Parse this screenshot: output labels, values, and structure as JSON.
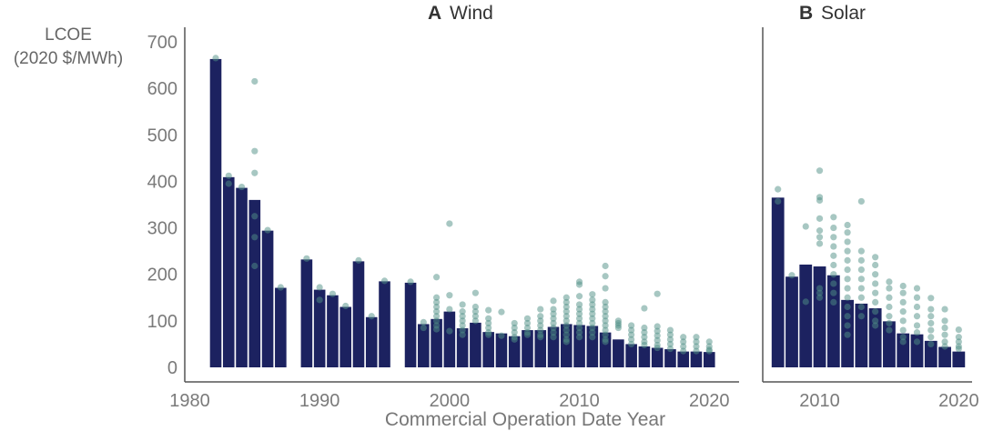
{
  "chart_data": [
    {
      "type": "bar",
      "panel_letter": "A",
      "title": "Wind",
      "xlabel": "Commercial Operation Date Year",
      "ylabel": [
        "LCOE",
        "(2020 $/MWh)"
      ],
      "ylim": [
        0,
        700
      ],
      "yticks": [
        "0",
        "100",
        "200",
        "300",
        "400",
        "500",
        "600",
        "700"
      ],
      "xlim": [
        1980,
        2021
      ],
      "xticks": [
        "1980",
        "1990",
        "2000",
        "2010",
        "2020"
      ],
      "grid": false,
      "years": [
        1982,
        1983,
        1984,
        1985,
        1986,
        1987,
        1989,
        1990,
        1991,
        1992,
        1993,
        1994,
        1995,
        1997,
        1998,
        1999,
        2000,
        2001,
        2002,
        2003,
        2004,
        2005,
        2006,
        2007,
        2008,
        2009,
        2010,
        2011,
        2012,
        2013,
        2014,
        2015,
        2016,
        2017,
        2018,
        2019,
        2020
      ],
      "values": [
        663,
        409,
        386,
        360,
        294,
        171,
        232,
        167,
        155,
        130,
        228,
        108,
        185,
        182,
        93,
        104,
        120,
        84,
        96,
        76,
        73,
        67,
        80,
        80,
        87,
        93,
        91,
        89,
        75,
        60,
        50,
        45,
        42,
        39,
        34,
        34,
        33
      ],
      "points": [
        [
          665
        ],
        [
          412,
          395
        ],
        [
          388
        ],
        [
          615,
          465,
          418,
          325,
          280,
          218
        ],
        [
          295
        ],
        [
          172
        ],
        [
          234
        ],
        [
          172,
          145
        ],
        [
          158
        ],
        [
          132
        ],
        [
          230
        ],
        [
          110
        ],
        [
          186
        ],
        [
          184
        ],
        [
          97,
          85
        ],
        [
          194,
          150,
          140,
          130,
          120,
          110,
          100,
          90,
          82
        ],
        [
          309,
          155,
          125,
          78
        ],
        [
          135,
          120,
          110,
          100,
          90,
          80,
          70
        ],
        [
          160,
          130,
          120,
          110,
          100
        ],
        [
          123,
          105,
          95,
          85,
          75,
          70
        ],
        [
          119,
          68
        ],
        [
          95,
          85,
          75,
          65,
          60
        ],
        [
          105,
          95,
          85,
          75,
          70
        ],
        [
          125,
          110,
          100,
          90,
          80,
          70,
          65
        ],
        [
          143,
          125,
          115,
          105,
          95,
          85,
          75,
          65
        ],
        [
          150,
          140,
          130,
          120,
          110,
          100,
          90,
          80,
          70,
          60,
          55
        ],
        [
          184,
          178,
          153,
          135,
          125,
          115,
          105,
          95,
          85,
          75,
          65
        ],
        [
          157,
          145,
          135,
          125,
          115,
          105,
          95,
          85,
          75,
          65
        ],
        [
          218,
          196,
          170,
          140,
          130,
          120,
          110,
          100,
          90,
          80,
          70,
          60,
          55
        ],
        [
          100,
          95,
          90,
          85
        ],
        [
          90,
          80,
          70,
          60,
          50
        ],
        [
          127,
          85,
          75,
          65,
          55,
          48
        ],
        [
          158,
          88,
          78,
          68,
          58,
          48,
          42
        ],
        [
          80,
          70,
          60,
          50,
          40
        ],
        [
          65,
          55,
          45,
          35
        ],
        [
          65,
          55,
          45,
          35
        ],
        [
          55,
          45,
          38,
          35
        ]
      ]
    },
    {
      "type": "bar",
      "panel_letter": "B",
      "title": "Solar",
      "ylim": [
        0,
        700
      ],
      "xlim": [
        2006,
        2021
      ],
      "xticks": [
        "2010",
        "2020"
      ],
      "grid": false,
      "years": [
        2007,
        2008,
        2009,
        2010,
        2011,
        2012,
        2013,
        2014,
        2015,
        2016,
        2017,
        2018,
        2019,
        2020
      ],
      "values": [
        365,
        195,
        221,
        217,
        198,
        145,
        137,
        127,
        99,
        73,
        71,
        57,
        44,
        34
      ],
      "points": [
        [
          383,
          357
        ],
        [
          198
        ],
        [
          303,
          141
        ],
        [
          423,
          366,
          359,
          320,
          294,
          280,
          266,
          170,
          160,
          150
        ],
        [
          323,
          300,
          280,
          260,
          240,
          220,
          200,
          180,
          160,
          140
        ],
        [
          306,
          290,
          270,
          250,
          230,
          210,
          190,
          170,
          150,
          130,
          110,
          90,
          70
        ],
        [
          357,
          250,
          230,
          210,
          190,
          170,
          150,
          130,
          110
        ],
        [
          237,
          220,
          200,
          180,
          160,
          140,
          120,
          100,
          90
        ],
        [
          184,
          170,
          150,
          130,
          110,
          95,
          80
        ],
        [
          175,
          160,
          140,
          120,
          100,
          80,
          65,
          55
        ],
        [
          170,
          150,
          130,
          110,
          90,
          75,
          55
        ],
        [
          149,
          125,
          110,
          95,
          80,
          65,
          50
        ],
        [
          125,
          100,
          85,
          70,
          55,
          45
        ],
        [
          81,
          65,
          55,
          45,
          40
        ]
      ]
    }
  ],
  "colors": {
    "bar": "#1c2260",
    "bar_gap": "#c9cce8",
    "point": "#4f8f86",
    "axis": "#555555"
  }
}
